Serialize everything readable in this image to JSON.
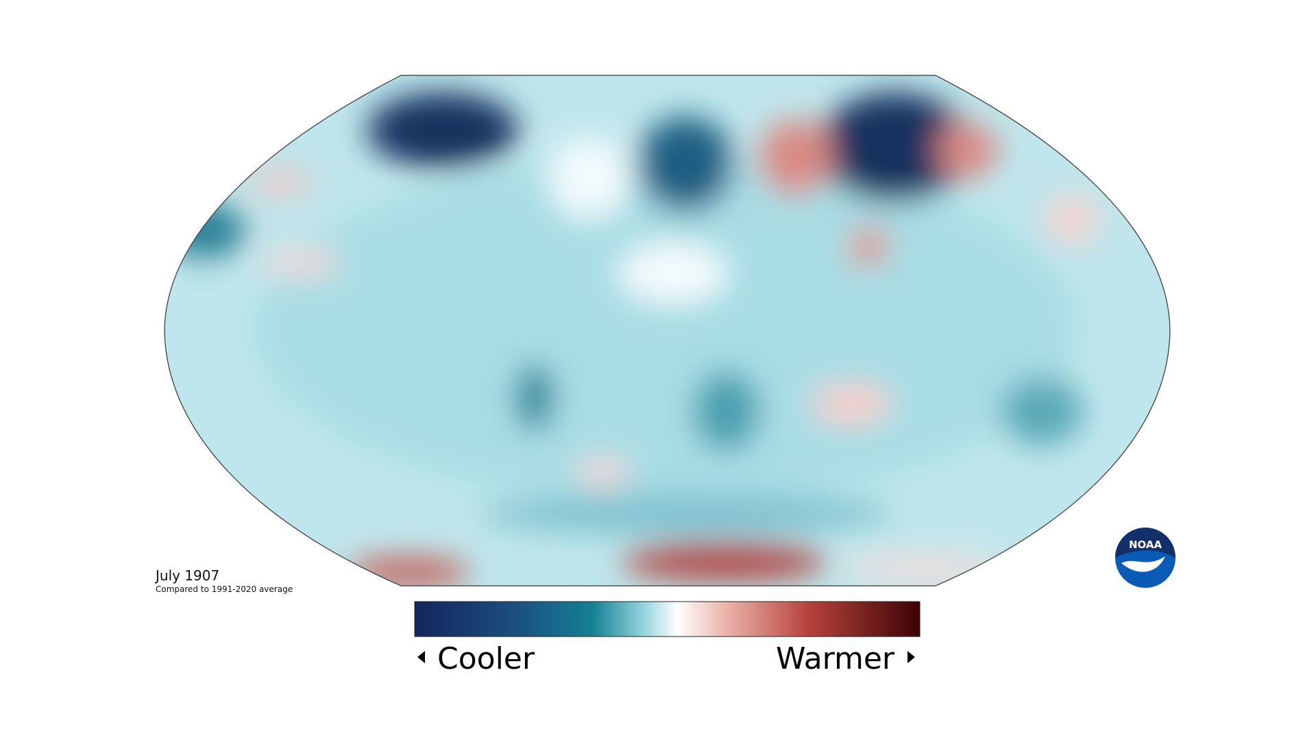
{
  "map": {
    "title": "July 1907",
    "subtitle": "Compared to 1991-2020 average"
  },
  "legend": {
    "low_label": "Cooler",
    "high_label": "Warmer"
  },
  "logo": {
    "text": "NOAA"
  }
}
